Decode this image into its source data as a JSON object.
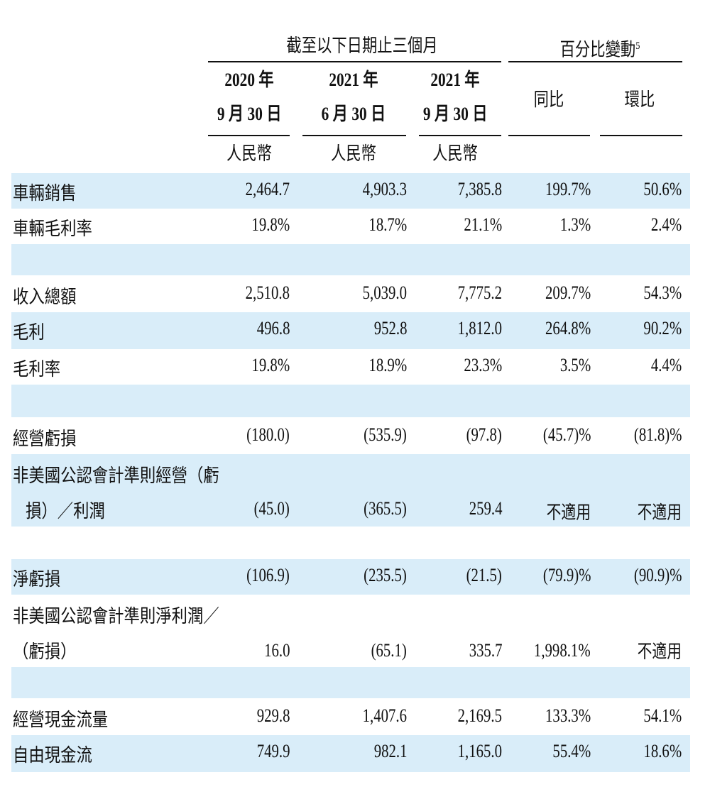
{
  "header": {
    "period_group": "截至以下日期止三個月",
    "change_group": "百分比變動",
    "change_footnote": "5",
    "columns": [
      {
        "year": "2020 年",
        "date": "9 月 30 日",
        "currency": "人民幣"
      },
      {
        "year": "2021 年",
        "date": "6 月 30 日",
        "currency": "人民幣"
      },
      {
        "year": "2021 年",
        "date": "9 月 30 日",
        "currency": "人民幣"
      }
    ],
    "yoy": "同比",
    "qoq": "環比"
  },
  "rows": [
    {
      "label": "車輛銷售",
      "values": [
        "2,464.7",
        "4,903.3",
        "7,385.8",
        "199.7%",
        "50.6%"
      ]
    },
    {
      "label": "車輛毛利率",
      "values": [
        "19.8%",
        "18.7%",
        "21.1%",
        "1.3%",
        "2.4%"
      ]
    },
    {
      "label": "收入總額",
      "values": [
        "2,510.8",
        "5,039.0",
        "7,775.2",
        "209.7%",
        "54.3%"
      ]
    },
    {
      "label": "毛利",
      "values": [
        "496.8",
        "952.8",
        "1,812.0",
        "264.8%",
        "90.2%"
      ]
    },
    {
      "label": "毛利率",
      "values": [
        "19.8%",
        "18.9%",
        "23.3%",
        "3.5%",
        "4.4%"
      ]
    },
    {
      "label": "經營虧損",
      "values": [
        "(180.0)",
        "(535.9)",
        "(97.8)",
        "(45.7)%",
        "(81.8)%"
      ]
    },
    {
      "label_line1": "非美國公認會計準則經營（虧",
      "label_line2": "損）／利潤",
      "values": [
        "(45.0)",
        "(365.5)",
        "259.4",
        "不適用",
        "不適用"
      ]
    },
    {
      "label": "淨虧損",
      "values": [
        "(106.9)",
        "(235.5)",
        "(21.5)",
        "(79.9)%",
        "(90.9)%"
      ]
    },
    {
      "label_line1": "非美國公認會計準則淨利潤／",
      "label_line2": "（虧損）",
      "values": [
        "16.0",
        "(65.1)",
        "335.7",
        "1,998.1%",
        "不適用"
      ]
    },
    {
      "label": "經營現金流量",
      "values": [
        "929.8",
        "1,407.6",
        "2,169.5",
        "133.3%",
        "54.1%"
      ]
    },
    {
      "label": "自由現金流",
      "values": [
        "749.9",
        "982.1",
        "1,165.0",
        "55.4%",
        "18.6%"
      ]
    }
  ],
  "colors": {
    "row_shade": "#d9edf9",
    "text": "#111111"
  }
}
